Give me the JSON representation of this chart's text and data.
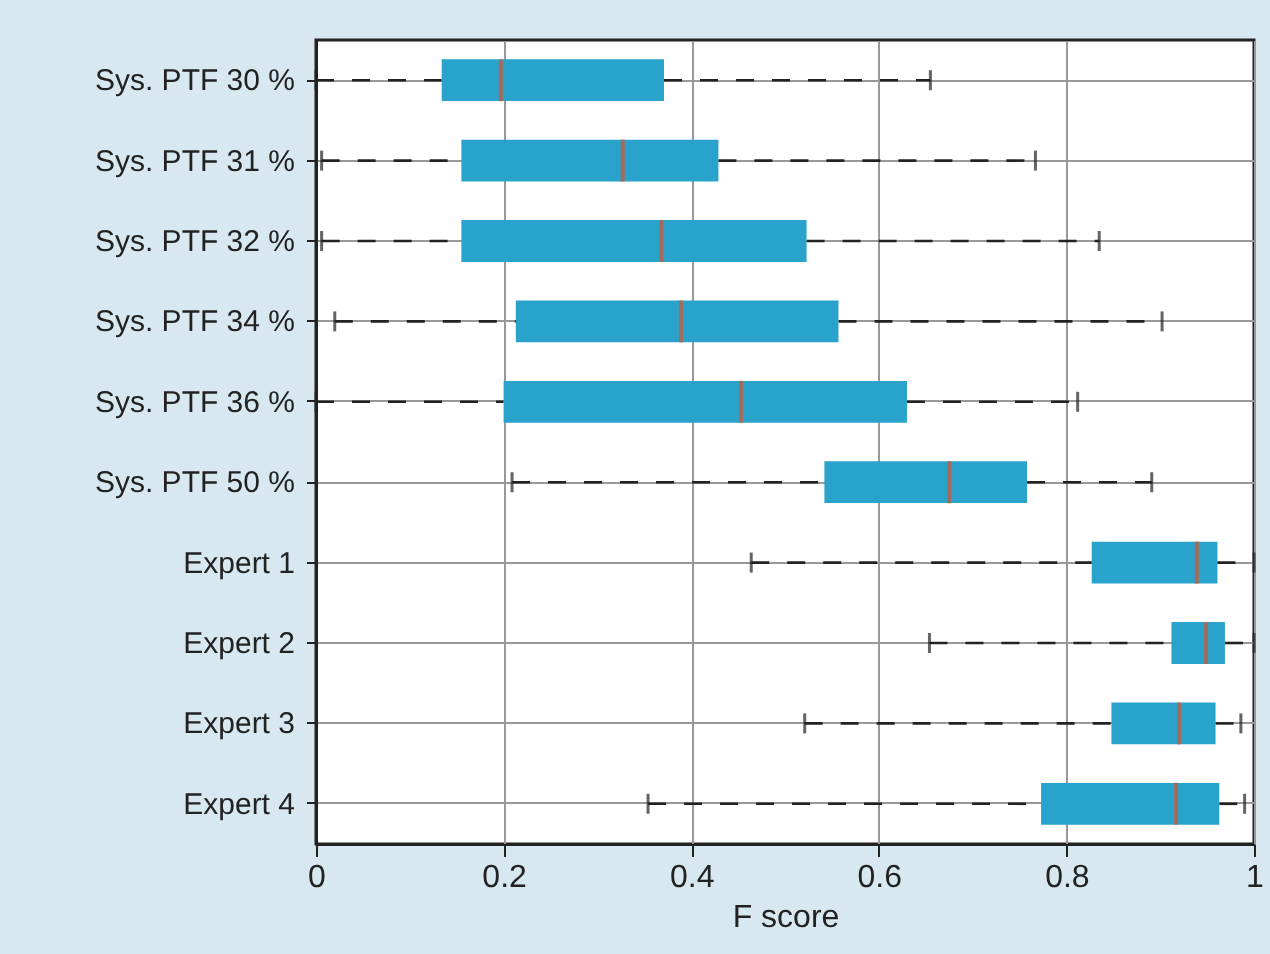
{
  "chart_data": {
    "type": "box",
    "orientation": "horizontal",
    "xlabel": "F score",
    "categories": [
      "Sys. PTF 30 %",
      "Sys. PTF 31 %",
      "Sys. PTF 32 %",
      "Sys. PTF 34 %",
      "Sys. PTF 36 %",
      "Sys. PTF 50 %",
      "Expert 1",
      "Expert 2",
      "Expert 3",
      "Expert 4"
    ],
    "series": [
      {
        "color": "#29a3cb",
        "boxes": [
          {
            "low": 0,
            "q1": 0.134,
            "median": 0.197,
            "q3": 0.371,
            "high": 0.655
          },
          {
            "low": 0.006,
            "q1": 0.155,
            "median": 0.327,
            "q3": 0.429,
            "high": 0.767
          },
          {
            "low": 0.006,
            "q1": 0.155,
            "median": 0.368,
            "q3": 0.523,
            "high": 0.835
          },
          {
            "low": 0.02,
            "q1": 0.213,
            "median": 0.389,
            "q3": 0.557,
            "high": 0.902
          },
          {
            "low": 0,
            "q1": 0.2,
            "median": 0.453,
            "q3": 0.63,
            "high": 0.812
          },
          {
            "low": 0.209,
            "q1": 0.542,
            "median": 0.675,
            "q3": 0.758,
            "high": 0.891
          },
          {
            "low": 0.464,
            "q1": 0.827,
            "median": 0.939,
            "q3": 0.961,
            "high": 1
          },
          {
            "low": 0.654,
            "q1": 0.912,
            "median": 0.949,
            "q3": 0.969,
            "high": 1
          },
          {
            "low": 0.521,
            "q1": 0.848,
            "median": 0.92,
            "q3": 0.959,
            "high": 0.986
          },
          {
            "low": 0.354,
            "q1": 0.773,
            "median": 0.917,
            "q3": 0.963,
            "high": 0.99
          }
        ]
      }
    ],
    "xlim": [
      0,
      1
    ],
    "xticks": [
      0,
      {
        "value": 0.2,
        "label": "0.2"
      },
      {
        "value": 0.4,
        "label": "0.4"
      },
      {
        "value": 0.6,
        "label": "0.6"
      },
      {
        "value": 0.8,
        "label": "0.8"
      },
      1
    ],
    "grid": true,
    "line_style": "dashed"
  }
}
